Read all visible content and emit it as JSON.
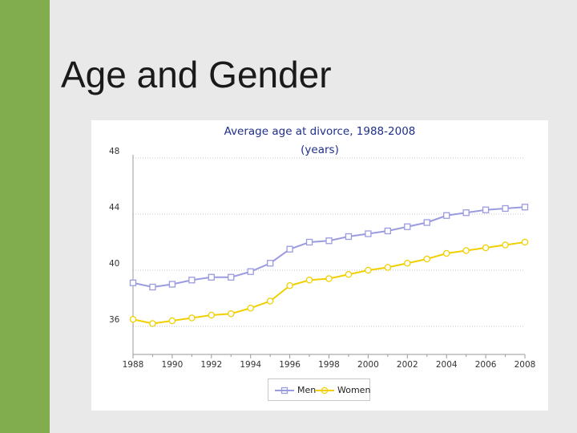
{
  "slide": {
    "title": "Age and Gender",
    "accent_color": "#82ad4f"
  },
  "chart_data": {
    "type": "line",
    "title": "Average age at divorce, 1988-2008",
    "subtitle": "(years)",
    "xlabel": "",
    "ylabel": "",
    "x": [
      1988,
      1989,
      1990,
      1991,
      1992,
      1993,
      1994,
      1995,
      1996,
      1997,
      1998,
      1999,
      2000,
      2001,
      2002,
      2003,
      2004,
      2005,
      2006,
      2007,
      2008
    ],
    "x_tick_labels": [
      "1988",
      "1990",
      "1992",
      "1994",
      "1996",
      "1998",
      "2000",
      "2002",
      "2004",
      "2006",
      "2008"
    ],
    "y_tick_labels": [
      "36",
      "40",
      "44",
      "48"
    ],
    "ylim": [
      34,
      48
    ],
    "y_ticks": [
      36,
      40,
      44,
      48
    ],
    "grid": "horizontal dotted",
    "legend_position": "bottom-center",
    "series": [
      {
        "name": "Men",
        "color": "#9b9be0",
        "marker": "square",
        "values": [
          39.1,
          38.8,
          39.0,
          39.3,
          39.5,
          39.5,
          39.9,
          40.5,
          41.5,
          42.0,
          42.1,
          42.4,
          42.6,
          42.8,
          43.1,
          43.4,
          43.9,
          44.1,
          44.3,
          44.4,
          44.5
        ]
      },
      {
        "name": "Women",
        "color": "#f0d000",
        "marker": "circle",
        "values": [
          36.5,
          36.2,
          36.4,
          36.6,
          36.8,
          36.9,
          37.3,
          37.8,
          38.9,
          39.3,
          39.4,
          39.7,
          40.0,
          40.2,
          40.5,
          40.8,
          41.2,
          41.4,
          41.6,
          41.8,
          42.0
        ]
      }
    ]
  }
}
